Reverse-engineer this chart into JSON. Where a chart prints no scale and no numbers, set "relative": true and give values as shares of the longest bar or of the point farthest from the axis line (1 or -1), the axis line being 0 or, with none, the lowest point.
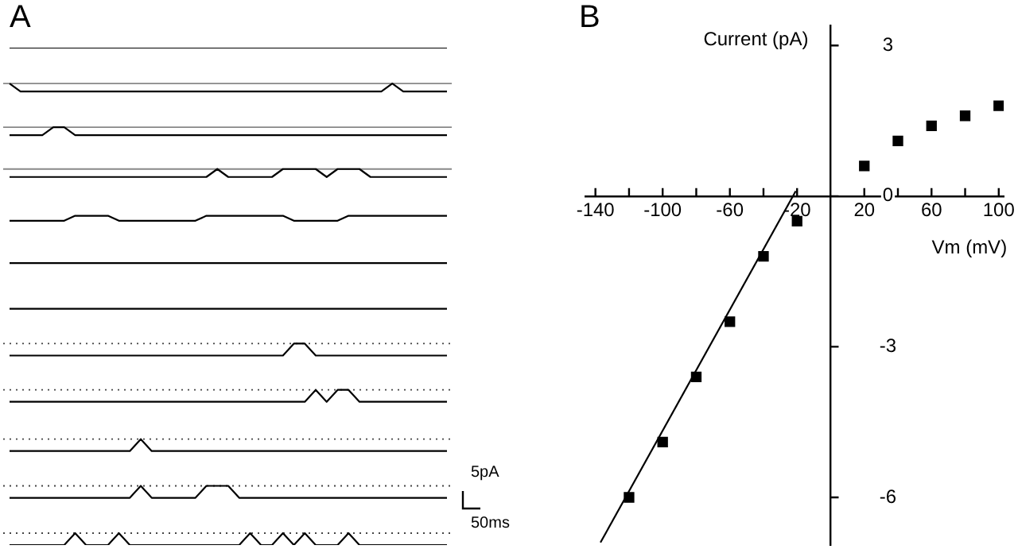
{
  "chart_data": [
    {
      "type": "line",
      "title": "A",
      "relative": true,
      "annotations": [
        "5pA",
        "50ms"
      ],
      "legend": false,
      "grid": false,
      "marker": "none",
      "categories": [
        null,
        null,
        null,
        null,
        null,
        null,
        null,
        null,
        null,
        null,
        null,
        null,
        null,
        null,
        null,
        null,
        null,
        null,
        null,
        null,
        null,
        null,
        null,
        null,
        null,
        null,
        null,
        null,
        null,
        null,
        null,
        null,
        null,
        null,
        null,
        null,
        null,
        null,
        null,
        null,
        null
      ],
      "ref_lines": [
        {
          "axis": "y",
          "value": 0.928,
          "color": "#888888",
          "line_style": "solid"
        },
        {
          "axis": "y",
          "value": 0.84,
          "color": "#888888",
          "line_style": "solid"
        },
        {
          "axis": "y",
          "value": 0.756,
          "color": "#888888",
          "line_style": "solid"
        },
        {
          "axis": "y",
          "value": 0.405,
          "color": "#444444",
          "line_style": "dotted"
        },
        {
          "axis": "y",
          "value": 0.312,
          "color": "#444444",
          "line_style": "dotted"
        },
        {
          "axis": "y",
          "value": 0.213,
          "color": "#444444",
          "line_style": "dotted"
        },
        {
          "axis": "y",
          "value": 0.119,
          "color": "#444444",
          "line_style": "dotted"
        },
        {
          "axis": "y",
          "value": 0.024,
          "color": "#444444",
          "line_style": "dotted"
        }
      ],
      "series": [
        {
          "color": "#000000",
          "values": [
            1,
            1,
            1,
            1,
            1,
            1,
            1,
            1,
            1,
            1,
            1,
            1,
            1,
            1,
            1,
            1,
            1,
            1,
            1,
            1,
            1,
            1,
            1,
            1,
            1,
            1,
            1,
            1,
            1,
            1,
            1,
            1,
            1,
            1,
            1,
            1,
            1,
            1,
            1,
            1,
            1
          ]
        },
        {
          "color": "#000000",
          "values": [
            0.928,
            0.912,
            0.912,
            0.912,
            0.912,
            0.912,
            0.912,
            0.912,
            0.912,
            0.912,
            0.912,
            0.912,
            0.912,
            0.912,
            0.912,
            0.912,
            0.912,
            0.912,
            0.912,
            0.912,
            0.912,
            0.912,
            0.912,
            0.912,
            0.912,
            0.912,
            0.912,
            0.912,
            0.912,
            0.912,
            0.912,
            0.912,
            0.912,
            0.912,
            0.912,
            0.928,
            0.912,
            0.912,
            0.912,
            0.912,
            0.912
          ]
        },
        {
          "color": "#000000",
          "values": [
            0.824,
            0.824,
            0.824,
            0.824,
            0.84,
            0.84,
            0.824,
            0.824,
            0.824,
            0.824,
            0.824,
            0.824,
            0.824,
            0.824,
            0.824,
            0.824,
            0.824,
            0.824,
            0.824,
            0.824,
            0.824,
            0.824,
            0.824,
            0.824,
            0.824,
            0.824,
            0.824,
            0.824,
            0.824,
            0.824,
            0.824,
            0.824,
            0.824,
            0.824,
            0.824,
            0.824,
            0.824,
            0.824,
            0.824,
            0.824,
            0.824
          ]
        },
        {
          "color": "#000000",
          "values": [
            0.74,
            0.74,
            0.74,
            0.74,
            0.74,
            0.74,
            0.74,
            0.74,
            0.74,
            0.74,
            0.74,
            0.74,
            0.74,
            0.74,
            0.74,
            0.74,
            0.74,
            0.74,
            0.74,
            0.756,
            0.74,
            0.74,
            0.74,
            0.74,
            0.74,
            0.756,
            0.756,
            0.756,
            0.756,
            0.74,
            0.756,
            0.756,
            0.756,
            0.74,
            0.74,
            0.74,
            0.74,
            0.74,
            0.74,
            0.74,
            0.74
          ]
        },
        {
          "color": "#000000",
          "values": [
            0.652,
            0.652,
            0.652,
            0.652,
            0.652,
            0.652,
            0.662,
            0.662,
            0.662,
            0.662,
            0.652,
            0.652,
            0.652,
            0.652,
            0.652,
            0.652,
            0.652,
            0.652,
            0.662,
            0.662,
            0.662,
            0.662,
            0.662,
            0.662,
            0.662,
            0.662,
            0.652,
            0.652,
            0.652,
            0.652,
            0.652,
            0.662,
            0.662,
            0.662,
            0.662,
            0.662,
            0.662,
            0.662,
            0.662,
            0.662,
            0.662
          ]
        },
        {
          "color": "#000000",
          "values": [
            0.567,
            0.567,
            0.567,
            0.567,
            0.567,
            0.567,
            0.567,
            0.567,
            0.567,
            0.567,
            0.567,
            0.567,
            0.567,
            0.567,
            0.567,
            0.567,
            0.567,
            0.567,
            0.567,
            0.567,
            0.567,
            0.567,
            0.567,
            0.567,
            0.567,
            0.567,
            0.567,
            0.567,
            0.567,
            0.567,
            0.567,
            0.567,
            0.567,
            0.567,
            0.567,
            0.567,
            0.567,
            0.567,
            0.567,
            0.567,
            0.567
          ]
        },
        {
          "color": "#000000",
          "values": [
            0.475,
            0.475,
            0.475,
            0.475,
            0.475,
            0.475,
            0.475,
            0.475,
            0.475,
            0.475,
            0.475,
            0.475,
            0.475,
            0.475,
            0.475,
            0.475,
            0.475,
            0.475,
            0.475,
            0.475,
            0.475,
            0.475,
            0.475,
            0.475,
            0.475,
            0.475,
            0.475,
            0.475,
            0.475,
            0.475,
            0.475,
            0.475,
            0.475,
            0.475,
            0.475,
            0.475,
            0.475,
            0.475,
            0.475,
            0.475,
            0.475
          ]
        },
        {
          "color": "#000000",
          "values": [
            0.381,
            0.381,
            0.381,
            0.381,
            0.381,
            0.381,
            0.381,
            0.381,
            0.381,
            0.381,
            0.381,
            0.381,
            0.381,
            0.381,
            0.381,
            0.381,
            0.381,
            0.381,
            0.381,
            0.381,
            0.381,
            0.381,
            0.381,
            0.381,
            0.381,
            0.381,
            0.405,
            0.405,
            0.381,
            0.381,
            0.381,
            0.381,
            0.381,
            0.381,
            0.381,
            0.381,
            0.381,
            0.381,
            0.381,
            0.381,
            0.381
          ]
        },
        {
          "color": "#000000",
          "values": [
            0.288,
            0.288,
            0.288,
            0.288,
            0.288,
            0.288,
            0.288,
            0.288,
            0.288,
            0.288,
            0.288,
            0.288,
            0.288,
            0.288,
            0.288,
            0.288,
            0.288,
            0.288,
            0.288,
            0.288,
            0.288,
            0.288,
            0.288,
            0.288,
            0.288,
            0.288,
            0.288,
            0.288,
            0.312,
            0.288,
            0.312,
            0.312,
            0.288,
            0.288,
            0.288,
            0.288,
            0.288,
            0.288,
            0.288,
            0.288,
            0.288
          ]
        },
        {
          "color": "#000000",
          "values": [
            0.189,
            0.189,
            0.189,
            0.189,
            0.189,
            0.189,
            0.189,
            0.189,
            0.189,
            0.189,
            0.189,
            0.189,
            0.213,
            0.189,
            0.189,
            0.189,
            0.189,
            0.189,
            0.189,
            0.189,
            0.189,
            0.189,
            0.189,
            0.189,
            0.189,
            0.189,
            0.189,
            0.189,
            0.189,
            0.189,
            0.189,
            0.189,
            0.189,
            0.189,
            0.189,
            0.189,
            0.189,
            0.189,
            0.189,
            0.189,
            0.189
          ]
        },
        {
          "color": "#000000",
          "values": [
            0.095,
            0.095,
            0.095,
            0.095,
            0.095,
            0.095,
            0.095,
            0.095,
            0.095,
            0.095,
            0.095,
            0.095,
            0.119,
            0.095,
            0.095,
            0.095,
            0.095,
            0.095,
            0.119,
            0.119,
            0.119,
            0.095,
            0.095,
            0.095,
            0.095,
            0.095,
            0.095,
            0.095,
            0.095,
            0.095,
            0.095,
            0.095,
            0.095,
            0.095,
            0.095,
            0.095,
            0.095,
            0.095,
            0.095,
            0.095,
            0.095
          ]
        },
        {
          "color": "#000000",
          "values": [
            0,
            0,
            0,
            0,
            0,
            0,
            0.024,
            0,
            0,
            0,
            0.024,
            0,
            0,
            0,
            0,
            0,
            0,
            0,
            0,
            0,
            0,
            0,
            0.024,
            0,
            0,
            0.024,
            0,
            0.024,
            0,
            0,
            0,
            0.024,
            0,
            0,
            0,
            0,
            0,
            0,
            0,
            0,
            0
          ]
        }
      ]
    },
    {
      "type": "scatter",
      "title": "B",
      "xlabel": "Vm (mV)",
      "ylabel": "Current (pA)",
      "xlim": [
        -146,
        103
      ],
      "ylim": [
        -6.95,
        3.4
      ],
      "xticks": [
        -140,
        {
          "value": -120,
          "label": null
        },
        -100,
        {
          "value": -80,
          "label": null
        },
        -60,
        {
          "value": -40,
          "label": null
        },
        -20,
        20,
        {
          "value": 40,
          "label": null
        },
        60,
        {
          "value": 80,
          "label": null
        },
        100
      ],
      "yticks": [
        3,
        0,
        -3,
        -6
      ],
      "grid": false,
      "legend": false,
      "marker": "square",
      "series": [
        {
          "type": "scatter",
          "color": "#000000",
          "x": [
            -120,
            -100,
            -80,
            -60,
            -40,
            -20,
            20,
            40,
            60,
            80,
            100
          ],
          "values": [
            -6.0,
            -4.9,
            -3.6,
            -2.5,
            -1.2,
            -0.5,
            0.6,
            1.1,
            1.4,
            1.6,
            1.8
          ]
        },
        {
          "type": "line",
          "color": "#000000",
          "line_style": "solid",
          "marker": "none",
          "x": [
            -137,
            -20.8
          ],
          "values": [
            -6.9,
            0.1
          ]
        }
      ]
    }
  ]
}
